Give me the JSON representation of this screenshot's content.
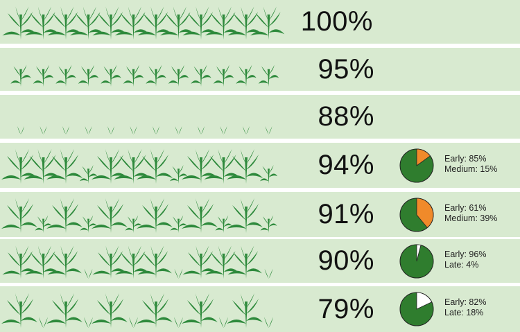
{
  "colors": {
    "row_bg": "#d8ead0",
    "plant": "#2e8a3c",
    "pie_main": "#2f7d2e",
    "pie_medium": "#f08a2a",
    "pie_late": "#ffffff"
  },
  "chart_data": {
    "type": "pictograph",
    "rows": [
      {
        "percent_label": "100%",
        "value": 100,
        "plant_count": 12,
        "plant_style": "tall",
        "breakdown": []
      },
      {
        "percent_label": "95%",
        "value": 95,
        "plant_count": 12,
        "plant_style": "seedling",
        "breakdown": []
      },
      {
        "percent_label": "88%",
        "value": 88,
        "plant_count": 12,
        "plant_style": "sprout",
        "breakdown": []
      },
      {
        "percent_label": "94%",
        "value": 94,
        "plant_count": 12,
        "plant_style": "mixed-tall",
        "breakdown": [
          {
            "label": "Early: 85%",
            "value": 85,
            "color": "#2f7d2e"
          },
          {
            "label": "Medium: 15%",
            "value": 15,
            "color": "#f08a2a"
          }
        ]
      },
      {
        "percent_label": "91%",
        "value": 91,
        "plant_count": 12,
        "plant_style": "mixed-medium",
        "breakdown": [
          {
            "label": "Early: 61%",
            "value": 61,
            "color": "#2f7d2e"
          },
          {
            "label": "Medium: 39%",
            "value": 39,
            "color": "#f08a2a"
          }
        ]
      },
      {
        "percent_label": "90%",
        "value": 90,
        "plant_count": 12,
        "plant_style": "mixed-late",
        "breakdown": [
          {
            "label": "Early: 96%",
            "value": 96,
            "color": "#2f7d2e"
          },
          {
            "label": "Late: 4%",
            "value": 4,
            "color": "#ffffff"
          }
        ]
      },
      {
        "percent_label": "79%",
        "value": 79,
        "plant_count": 12,
        "plant_style": "sparse-late",
        "breakdown": [
          {
            "label": "Early: 82%",
            "value": 82,
            "color": "#2f7d2e"
          },
          {
            "label": "Late: 18%",
            "value": 18,
            "color": "#ffffff"
          }
        ]
      }
    ]
  }
}
